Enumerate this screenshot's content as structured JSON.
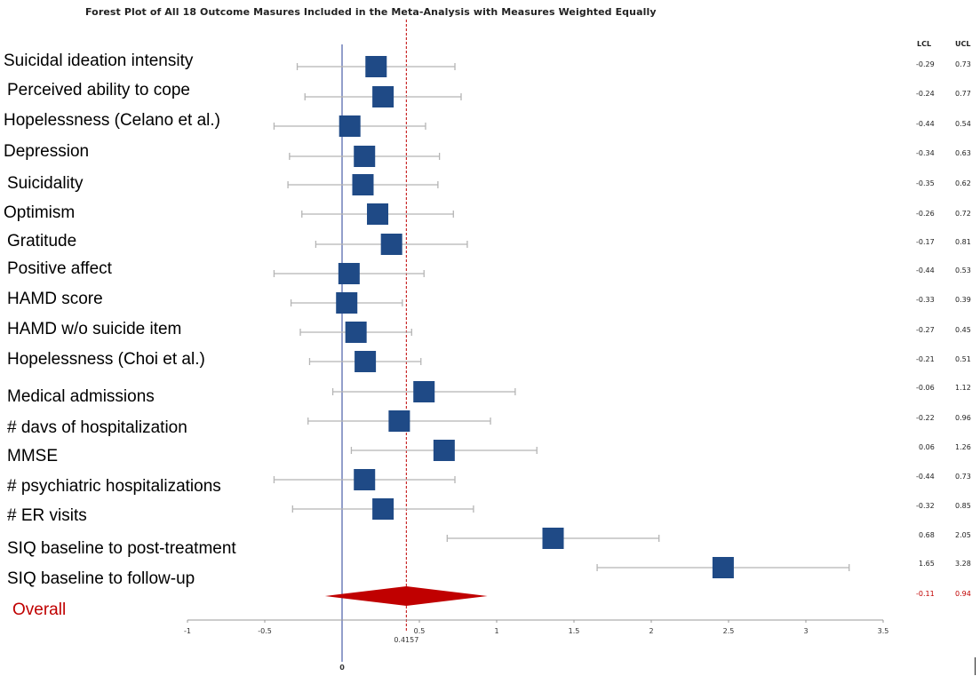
{
  "chart_data": {
    "type": "forest",
    "title": "Forest Plot of All 18 Outcome Masures Included in the Meta-Analysis with Measures Weighted Equally",
    "ci_headers": {
      "lcl": "LCL",
      "ucl": "UCL"
    },
    "rows": [
      {
        "label": "Suicidal ideation intensity",
        "estimate": 0.22,
        "lcl": "-0.29",
        "ucl": "0.73"
      },
      {
        "label": "Perceived ability to cope",
        "estimate": 0.265,
        "lcl": "-0.24",
        "ucl": "0.77"
      },
      {
        "label": "Hopelessness (Celano et al.)",
        "estimate": 0.05,
        "lcl": "-0.44",
        "ucl": "0.54"
      },
      {
        "label": "Depression",
        "estimate": 0.145,
        "lcl": "-0.34",
        "ucl": "0.63"
      },
      {
        "label": "Suicidality",
        "estimate": 0.135,
        "lcl": "-0.35",
        "ucl": "0.62"
      },
      {
        "label": "Optimism",
        "estimate": 0.23,
        "lcl": "-0.26",
        "ucl": "0.72"
      },
      {
        "label": "Gratitude",
        "estimate": 0.32,
        "lcl": "-0.17",
        "ucl": "0.81"
      },
      {
        "label": "Positive affect",
        "estimate": 0.045,
        "lcl": "-0.44",
        "ucl": "0.53"
      },
      {
        "label": "HAMD score",
        "estimate": 0.03,
        "lcl": "-0.33",
        "ucl": "0.39"
      },
      {
        "label": "HAMD w/o suicide item",
        "estimate": 0.09,
        "lcl": "-0.27",
        "ucl": "0.45"
      },
      {
        "label": "Hopelessness (Choi et al.)",
        "estimate": 0.15,
        "lcl": "-0.21",
        "ucl": "0.51"
      },
      {
        "label": "Medical admissions",
        "estimate": 0.53,
        "lcl": "-0.06",
        "ucl": "1.12"
      },
      {
        "label": "# davs of hospitalization",
        "estimate": 0.37,
        "lcl": "-0.22",
        "ucl": "0.96"
      },
      {
        "label": "MMSE",
        "estimate": 0.66,
        "lcl": "0.06",
        "ucl": "1.26"
      },
      {
        "label": "# psychiatric hospitalizations",
        "estimate": 0.145,
        "lcl": "-0.44",
        "ucl": "0.73"
      },
      {
        "label": "# ER visits",
        "estimate": 0.265,
        "lcl": "-0.32",
        "ucl": "0.85"
      },
      {
        "label": "SIQ baseline to post-treatment",
        "estimate": 1.365,
        "lcl": "0.68",
        "ucl": "2.05"
      },
      {
        "label": "SIQ baseline to follow-up",
        "estimate": 2.465,
        "lcl": "1.65",
        "ucl": "3.28"
      }
    ],
    "overall": {
      "label": "Overall",
      "estimate": 0.4157,
      "estimate_label": "0.4157",
      "lcl": "-0.11",
      "ucl": "0.94"
    },
    "x_ticks": [
      "-1",
      "-0.5",
      "0.5",
      "1",
      "1.5",
      "2",
      "2.5",
      "3",
      "3.5"
    ],
    "zero_label": "0",
    "xlim": [
      -1,
      3.5
    ],
    "colors": {
      "marker": "#1f4a86",
      "whisker": "#b5b5b5",
      "zero_line": "#4a5fa8",
      "overall": "#c00000",
      "axis": "#999999"
    }
  }
}
